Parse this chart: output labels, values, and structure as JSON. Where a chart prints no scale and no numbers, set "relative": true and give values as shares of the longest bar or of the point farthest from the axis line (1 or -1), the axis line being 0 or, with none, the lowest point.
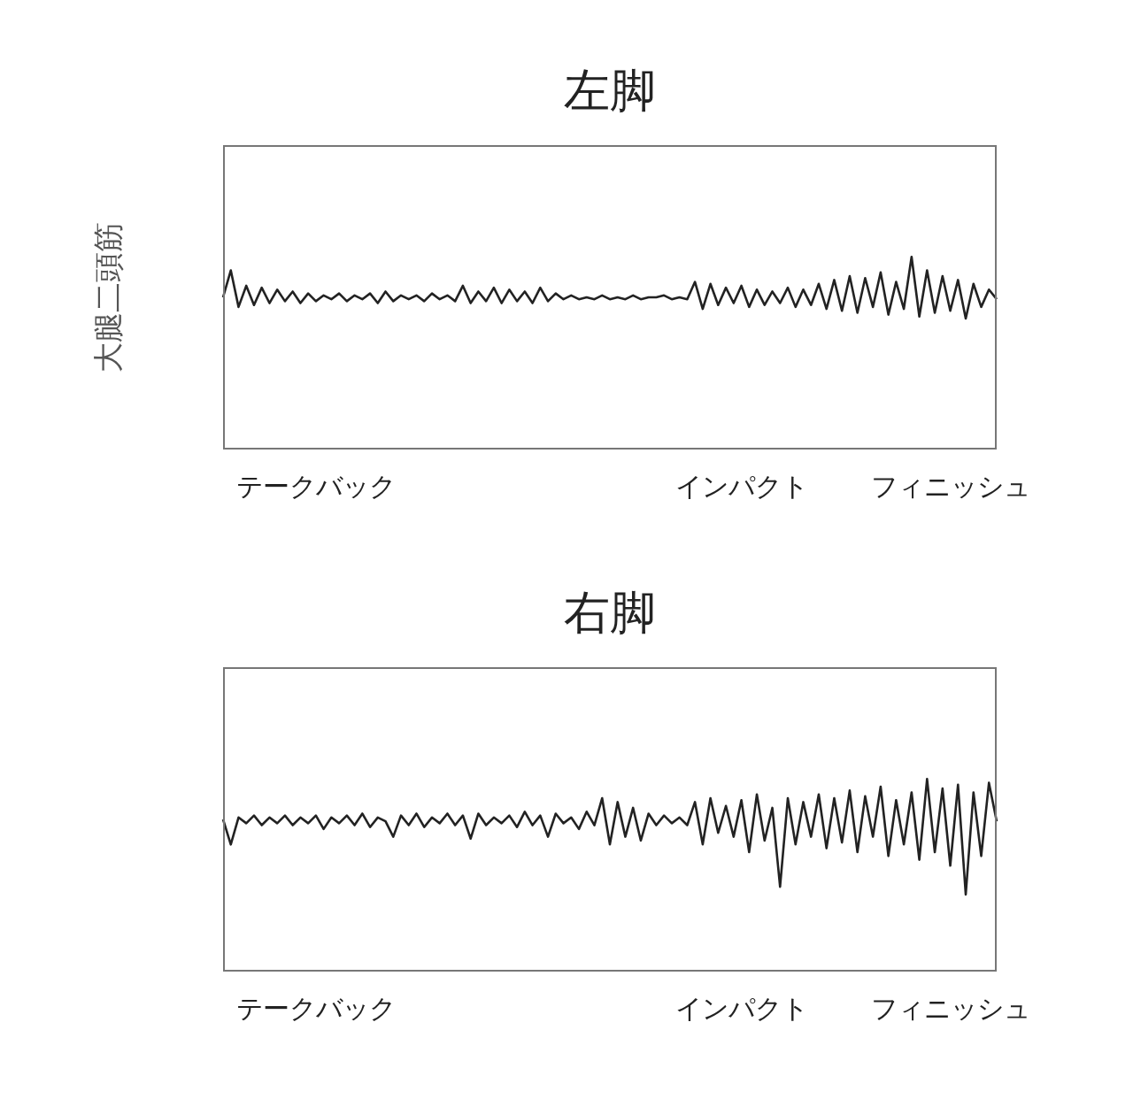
{
  "chart_data": [
    {
      "type": "line",
      "title": "左脚",
      "ylabel": "大腿二頭筋",
      "relative": true,
      "categories": [
        null,
        null,
        null,
        null,
        null,
        null,
        null,
        null,
        null,
        null,
        null,
        null,
        "テークバック",
        null,
        null,
        null,
        null,
        null,
        null,
        null,
        null,
        null,
        null,
        null,
        null,
        null,
        null,
        null,
        null,
        null,
        null,
        null,
        null,
        null,
        null,
        null,
        null,
        null,
        null,
        null,
        null,
        null,
        null,
        null,
        null,
        null,
        null,
        null,
        null,
        null,
        null,
        null,
        null,
        null,
        null,
        null,
        null,
        null,
        null,
        null,
        null,
        null,
        null,
        null,
        null,
        null,
        null,
        "インパクト",
        null,
        null,
        null,
        null,
        null,
        null,
        null,
        null,
        null,
        null,
        null,
        null,
        null,
        null,
        null,
        null,
        null,
        null,
        null,
        null,
        null,
        null,
        null,
        null,
        null,
        null,
        "フィニッシュ",
        null,
        null,
        null,
        null,
        null,
        null
      ],
      "series": [
        {
          "color": "#222222",
          "values": [
            0.79,
            0.93,
            0.74,
            0.85,
            0.75,
            0.84,
            0.76,
            0.83,
            0.77,
            0.82,
            0.76,
            0.81,
            0.77,
            0.8,
            0.78,
            0.81,
            0.77,
            0.8,
            0.78,
            0.81,
            0.76,
            0.82,
            0.77,
            0.8,
            0.78,
            0.8,
            0.77,
            0.81,
            0.78,
            0.8,
            0.77,
            0.85,
            0.76,
            0.82,
            0.77,
            0.84,
            0.76,
            0.83,
            0.77,
            0.82,
            0.76,
            0.84,
            0.77,
            0.81,
            0.78,
            0.8,
            0.78,
            0.79,
            0.78,
            0.8,
            0.78,
            0.79,
            0.78,
            0.8,
            0.78,
            0.79,
            0.79,
            0.8,
            0.78,
            0.79,
            0.78,
            0.87,
            0.73,
            0.86,
            0.75,
            0.84,
            0.76,
            0.85,
            0.74,
            0.83,
            0.75,
            0.82,
            0.76,
            0.84,
            0.74,
            0.83,
            0.75,
            0.86,
            0.73,
            0.88,
            0.72,
            0.9,
            0.71,
            0.89,
            0.74,
            0.92,
            0.7,
            0.87,
            0.73,
            1.0,
            0.69,
            0.93,
            0.71,
            0.9,
            0.72,
            0.88,
            0.68,
            0.86,
            0.74,
            0.83,
            0.78
          ]
        }
      ]
    },
    {
      "type": "line",
      "title": "右脚",
      "relative": true,
      "categories": [
        null,
        null,
        null,
        null,
        null,
        null,
        null,
        null,
        null,
        null,
        null,
        null,
        "テークバック",
        null,
        null,
        null,
        null,
        null,
        null,
        null,
        null,
        null,
        null,
        null,
        null,
        null,
        null,
        null,
        null,
        null,
        null,
        null,
        null,
        null,
        null,
        null,
        null,
        null,
        null,
        null,
        null,
        null,
        null,
        null,
        null,
        null,
        null,
        null,
        null,
        null,
        null,
        null,
        null,
        null,
        null,
        null,
        null,
        null,
        null,
        null,
        null,
        null,
        null,
        null,
        null,
        null,
        null,
        "インパクト",
        null,
        null,
        null,
        null,
        null,
        null,
        null,
        null,
        null,
        null,
        null,
        null,
        null,
        null,
        null,
        null,
        null,
        null,
        null,
        null,
        null,
        null,
        null,
        null,
        null,
        null,
        "フィニッシュ",
        null,
        null,
        null,
        null,
        null,
        null
      ],
      "series": [
        {
          "color": "#222222",
          "values": [
            0.79,
            0.66,
            0.8,
            0.77,
            0.81,
            0.76,
            0.8,
            0.77,
            0.81,
            0.76,
            0.8,
            0.77,
            0.81,
            0.74,
            0.8,
            0.77,
            0.81,
            0.76,
            0.82,
            0.75,
            0.8,
            0.78,
            0.7,
            0.81,
            0.76,
            0.82,
            0.75,
            0.8,
            0.77,
            0.82,
            0.76,
            0.81,
            0.69,
            0.82,
            0.76,
            0.8,
            0.77,
            0.81,
            0.75,
            0.83,
            0.76,
            0.81,
            0.7,
            0.82,
            0.77,
            0.8,
            0.74,
            0.83,
            0.76,
            0.9,
            0.66,
            0.88,
            0.7,
            0.85,
            0.68,
            0.82,
            0.76,
            0.81,
            0.77,
            0.8,
            0.76,
            0.88,
            0.66,
            0.9,
            0.72,
            0.86,
            0.7,
            0.89,
            0.62,
            0.92,
            0.68,
            0.85,
            0.44,
            0.9,
            0.66,
            0.88,
            0.7,
            0.92,
            0.64,
            0.9,
            0.67,
            0.94,
            0.62,
            0.91,
            0.7,
            0.96,
            0.6,
            0.89,
            0.66,
            0.93,
            0.58,
            1.0,
            0.62,
            0.95,
            0.55,
            0.97,
            0.4,
            0.93,
            0.6,
            0.98,
            0.78
          ]
        }
      ]
    }
  ]
}
